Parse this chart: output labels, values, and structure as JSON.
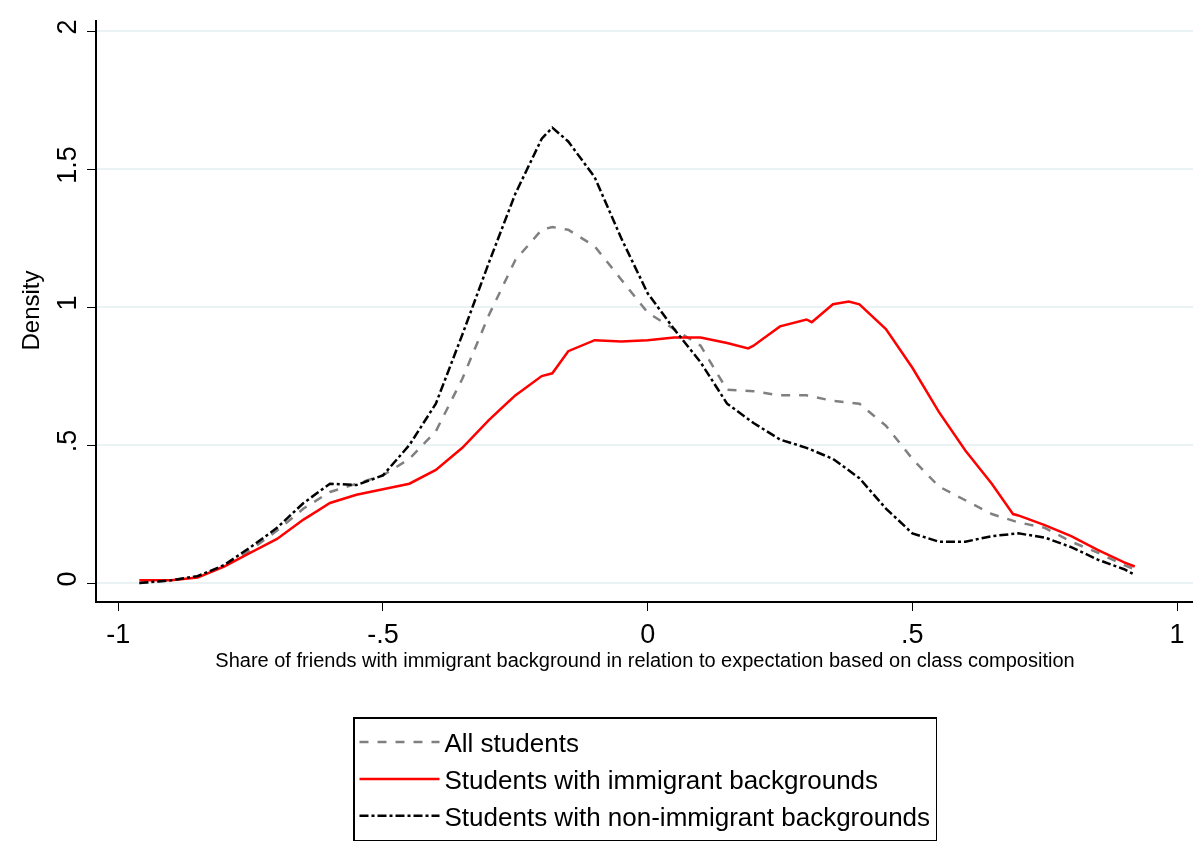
{
  "chart_data": {
    "type": "line",
    "xlabel": "Share of friends with immigrant background in relation to expectation based on class composition",
    "ylabel": "Density",
    "xlim": [
      -1.04,
      1.03
    ],
    "xticks": [
      {
        "value": -1,
        "label": "-1"
      },
      {
        "value": -0.5,
        "label": "-.5"
      },
      0,
      {
        "value": 0.5,
        "label": ".5"
      },
      1
    ],
    "ylim": [
      -0.065,
      2.04
    ],
    "yticks": [
      0,
      {
        "value": 0.5,
        "label": ".5"
      },
      1,
      {
        "value": 1.5,
        "label": "1.5"
      },
      2
    ],
    "grid": "y",
    "legend": "bottom",
    "marker": "none",
    "series": [
      {
        "name": "All students",
        "color": "#808080",
        "line_style": "dashed",
        "x": [
          -0.96,
          -0.9,
          -0.85,
          -0.8,
          -0.75,
          -0.7,
          -0.65,
          -0.6,
          -0.55,
          -0.5,
          -0.45,
          -0.4,
          -0.35,
          -0.3,
          -0.25,
          -0.2,
          -0.18,
          -0.15,
          -0.1,
          -0.05,
          0,
          0.05,
          0.1,
          0.15,
          0.2,
          0.25,
          0.3,
          0.35,
          0.4,
          0.45,
          0.5,
          0.55,
          0.6,
          0.65,
          0.7,
          0.75,
          0.8,
          0.85,
          0.9,
          0.92
        ],
        "values": [
          0.0,
          0.01,
          0.025,
          0.06,
          0.12,
          0.19,
          0.27,
          0.33,
          0.36,
          0.39,
          0.45,
          0.55,
          0.74,
          0.97,
          1.17,
          1.28,
          1.29,
          1.28,
          1.22,
          1.1,
          0.98,
          0.92,
          0.86,
          0.7,
          0.695,
          0.68,
          0.68,
          0.66,
          0.65,
          0.57,
          0.45,
          0.35,
          0.3,
          0.25,
          0.22,
          0.2,
          0.15,
          0.11,
          0.065,
          0.05
        ]
      },
      {
        "name": "Students with immigrant backgrounds",
        "color": "#ff0000",
        "line_style": "solid",
        "x": [
          -0.96,
          -0.9,
          -0.85,
          -0.8,
          -0.75,
          -0.7,
          -0.65,
          -0.6,
          -0.55,
          -0.5,
          -0.45,
          -0.4,
          -0.35,
          -0.3,
          -0.25,
          -0.2,
          -0.18,
          -0.15,
          -0.1,
          -0.05,
          0,
          0.05,
          0.1,
          0.15,
          0.19,
          0.2,
          0.25,
          0.3,
          0.31,
          0.35,
          0.38,
          0.4,
          0.45,
          0.5,
          0.55,
          0.6,
          0.65,
          0.69,
          0.7,
          0.75,
          0.8,
          0.85,
          0.9,
          0.92
        ],
        "values": [
          0.01,
          0.01,
          0.02,
          0.06,
          0.11,
          0.16,
          0.23,
          0.29,
          0.32,
          0.34,
          0.36,
          0.41,
          0.49,
          0.59,
          0.68,
          0.75,
          0.76,
          0.84,
          0.88,
          0.875,
          0.88,
          0.89,
          0.89,
          0.87,
          0.85,
          0.86,
          0.93,
          0.955,
          0.945,
          1.01,
          1.02,
          1.01,
          0.92,
          0.78,
          0.62,
          0.48,
          0.36,
          0.25,
          0.245,
          0.21,
          0.17,
          0.12,
          0.075,
          0.06
        ]
      },
      {
        "name": "Students with non-immigrant backgrounds",
        "color": "#000000",
        "line_style": "dashdot",
        "x": [
          -0.96,
          -0.9,
          -0.85,
          -0.8,
          -0.75,
          -0.7,
          -0.65,
          -0.6,
          -0.55,
          -0.5,
          -0.45,
          -0.4,
          -0.35,
          -0.3,
          -0.25,
          -0.2,
          -0.18,
          -0.15,
          -0.1,
          -0.05,
          0,
          0.05,
          0.1,
          0.15,
          0.2,
          0.25,
          0.3,
          0.35,
          0.4,
          0.45,
          0.5,
          0.55,
          0.6,
          0.65,
          0.7,
          0.75,
          0.8,
          0.85,
          0.9,
          0.92
        ],
        "values": [
          0.0,
          0.01,
          0.025,
          0.065,
          0.13,
          0.2,
          0.29,
          0.36,
          0.355,
          0.39,
          0.5,
          0.65,
          0.9,
          1.16,
          1.41,
          1.61,
          1.65,
          1.6,
          1.47,
          1.25,
          1.05,
          0.92,
          0.8,
          0.65,
          0.58,
          0.52,
          0.49,
          0.45,
          0.38,
          0.27,
          0.18,
          0.15,
          0.15,
          0.17,
          0.18,
          0.165,
          0.13,
          0.085,
          0.05,
          0.03
        ]
      }
    ]
  }
}
